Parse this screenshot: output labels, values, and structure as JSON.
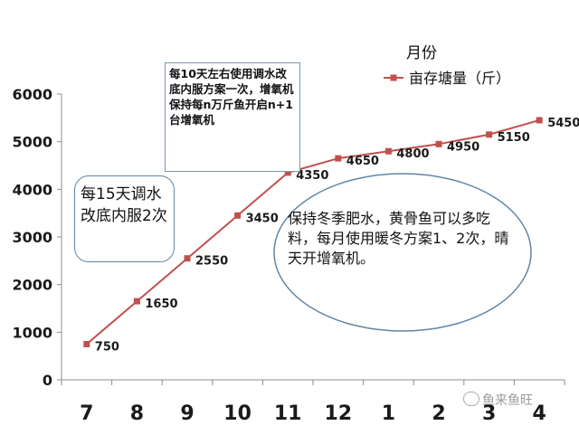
{
  "chart_data": {
    "type": "line",
    "categories": [
      "7",
      "8",
      "9",
      "10",
      "11",
      "12",
      "1",
      "2",
      "3",
      "4"
    ],
    "series": [
      {
        "name": "亩存塘量（斤）",
        "values": [
          750,
          1650,
          2550,
          3450,
          4350,
          4650,
          4800,
          4950,
          5150,
          5450
        ]
      }
    ],
    "legend_title": "月份",
    "ylim": [
      0,
      6000
    ],
    "yticks": [
      "0",
      "1000",
      "2000",
      "3000",
      "4000",
      "5000",
      "6000"
    ],
    "legend_position": "top-right",
    "line_color": "#c0504d",
    "grid": false
  },
  "annotations": {
    "top_box": "每10天左右使用调水改底内服方案一次，增氧机保持每n万斤鱼开启n+1台增氧机",
    "left_box": "每15天调水改底内服2次",
    "ellipse": "保持冬季肥水，黄骨鱼可以多吃料，每月使用暖冬方案1、2次，晴天开增氧机。"
  },
  "watermark": "鱼来鱼旺"
}
